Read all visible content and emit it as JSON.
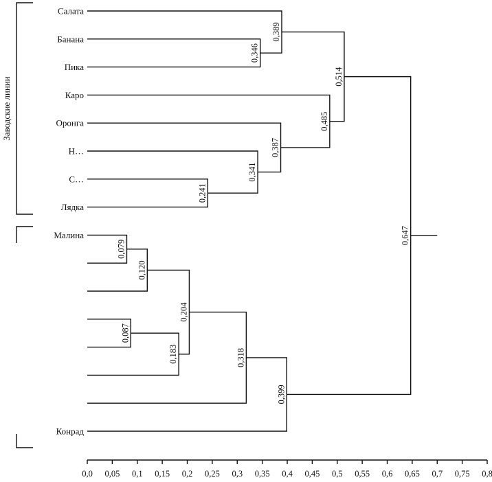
{
  "chart_data": {
    "type": "dendrogram",
    "title": "",
    "xlabel": "",
    "ylabel": "",
    "xlim": [
      0,
      0.8
    ],
    "x_ticks": [
      "0,0",
      "0,05",
      "0,1",
      "0,15",
      "0,2",
      "0,25",
      "0,3",
      "0,35",
      "0,4",
      "0,45",
      "0,5",
      "0,55",
      "0,6",
      "0,65",
      "0,7",
      "0,75",
      "0,8"
    ],
    "x_tick_values": [
      0,
      0.05,
      0.1,
      0.15,
      0.2,
      0.25,
      0.3,
      0.35,
      0.4,
      0.45,
      0.5,
      0.55,
      0.6,
      0.65,
      0.7,
      0.75,
      0.8
    ],
    "leaves": [
      "Салата",
      "Банана",
      "Пика",
      "Каро",
      "Оронга",
      "Н…",
      "С…",
      "Лядка",
      "Малина",
      "",
      "",
      "",
      "",
      "",
      "",
      "Конрад"
    ],
    "group_label": "Заводские линии",
    "nodes": [
      {
        "height": 0.346,
        "label": "0,346",
        "children": [
          "L1",
          "L2"
        ]
      },
      {
        "height": 0.389,
        "label": "0,389",
        "children": [
          "L0",
          "N0"
        ]
      },
      {
        "height": 0.241,
        "label": "0,241",
        "children": [
          "L6",
          "L7"
        ]
      },
      {
        "height": 0.341,
        "label": "0,341",
        "children": [
          "L5",
          "N2"
        ]
      },
      {
        "height": 0.387,
        "label": "0,387",
        "children": [
          "L4",
          "N3"
        ]
      },
      {
        "height": 0.485,
        "label": "0,485",
        "children": [
          "L3",
          "N4"
        ]
      },
      {
        "height": 0.514,
        "label": "0,514",
        "children": [
          "N1",
          "N5"
        ]
      },
      {
        "height": 0.079,
        "label": "0,079",
        "children": [
          "L8",
          "L9"
        ]
      },
      {
        "height": 0.12,
        "label": "0,120",
        "children": [
          "N7",
          "L10"
        ]
      },
      {
        "height": 0.087,
        "label": "0,087",
        "children": [
          "L11",
          "L12"
        ]
      },
      {
        "height": 0.183,
        "label": "0,183",
        "children": [
          "N9",
          "L13"
        ]
      },
      {
        "height": 0.204,
        "label": "0,204",
        "children": [
          "N8",
          "N10"
        ]
      },
      {
        "height": 0.318,
        "label": "0,318",
        "children": [
          "N11",
          "L14"
        ]
      },
      {
        "height": 0.399,
        "label": "0,399",
        "children": [
          "N12",
          "L15"
        ]
      },
      {
        "height": 0.647,
        "label": "0,647",
        "children": [
          "N6",
          "N13"
        ]
      }
    ],
    "root_stub_end": 0.7
  }
}
